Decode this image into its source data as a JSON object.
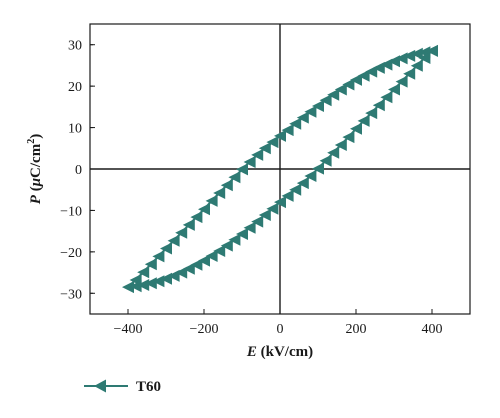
{
  "chart_data": {
    "type": "line",
    "xlabel_var": "E",
    "xlabel_unit": " (kV/cm)",
    "ylabel_var": "P",
    "ylabel_unit_pre": " (",
    "ylabel_mu": "μ",
    "ylabel_unit_mid": "C/cm",
    "ylabel_sup": "2",
    "ylabel_unit_post": ")",
    "xlim": [
      -500,
      500
    ],
    "ylim": [
      -35,
      35
    ],
    "xticks": [
      -400,
      -200,
      0,
      200,
      400
    ],
    "yticks": [
      -30,
      -20,
      -10,
      0,
      10,
      20,
      30
    ],
    "xtick_labels": [
      "−400",
      "−200",
      "0",
      "200",
      "400"
    ],
    "ytick_labels": [
      "−30",
      "−20",
      "−10",
      "0",
      "10",
      "20",
      "30"
    ],
    "zero_lines": true,
    "grid": false,
    "legend_position": "bottom-left",
    "series": [
      {
        "name": "T60",
        "color": "#2e7a73",
        "marker": "left-triangle",
        "x": [
          400,
          380,
          360,
          340,
          320,
          300,
          280,
          260,
          240,
          220,
          200,
          180,
          160,
          140,
          120,
          100,
          80,
          60,
          40,
          20,
          0,
          -20,
          -40,
          -60,
          -80,
          -100,
          -120,
          -140,
          -160,
          -180,
          -200,
          -220,
          -240,
          -260,
          -280,
          -300,
          -320,
          -340,
          -360,
          -380,
          -400,
          -380,
          -360,
          -340,
          -320,
          -300,
          -280,
          -260,
          -240,
          -220,
          -200,
          -180,
          -160,
          -140,
          -120,
          -100,
          -80,
          -60,
          -40,
          -20,
          0,
          20,
          40,
          60,
          80,
          100,
          120,
          140,
          160,
          180,
          200,
          220,
          240,
          260,
          280,
          300,
          320,
          340,
          360,
          380,
          400
        ],
        "y": [
          28.5,
          28.2,
          27.8,
          27.3,
          26.7,
          26.0,
          25.2,
          24.4,
          23.5,
          22.5,
          21.5,
          20.4,
          19.2,
          17.9,
          16.6,
          15.2,
          13.8,
          12.4,
          10.9,
          9.4,
          8.0,
          6.5,
          5.0,
          3.4,
          1.7,
          -0.1,
          -2.0,
          -3.9,
          -5.8,
          -7.7,
          -9.7,
          -11.6,
          -13.5,
          -15.4,
          -17.3,
          -19.2,
          -21.1,
          -23.0,
          -24.9,
          -26.8,
          -28.5,
          -28.3,
          -28.0,
          -27.6,
          -27.1,
          -26.5,
          -25.8,
          -25.0,
          -24.1,
          -23.1,
          -22.1,
          -21.0,
          -19.8,
          -18.5,
          -17.1,
          -15.7,
          -14.2,
          -12.7,
          -11.1,
          -9.6,
          -8.0,
          -6.5,
          -5.0,
          -3.4,
          -1.7,
          0.1,
          2.0,
          3.9,
          5.8,
          7.7,
          9.7,
          11.6,
          13.5,
          15.4,
          17.3,
          19.2,
          21.1,
          23.0,
          24.9,
          26.8,
          28.5
        ]
      }
    ]
  }
}
